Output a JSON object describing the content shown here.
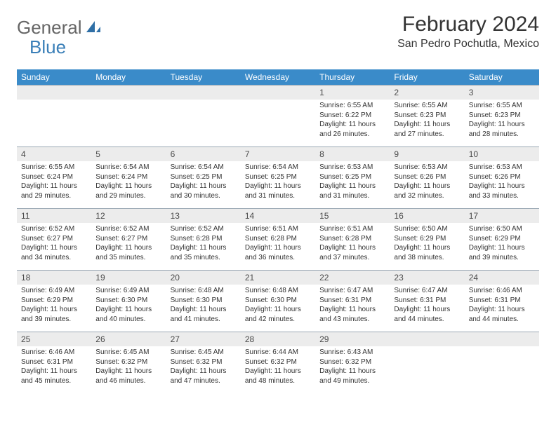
{
  "colors": {
    "header_bg": "#3a8bc9",
    "header_fg": "#ffffff",
    "daynum_bg": "#ececec",
    "border": "#9aa8b4",
    "text": "#333333",
    "logo_blue": "#3a7fb8"
  },
  "logo": {
    "left": "General",
    "right": "Blue"
  },
  "title": "February 2024",
  "location": "San Pedro Pochutla, Mexico",
  "day_headers": [
    "Sunday",
    "Monday",
    "Tuesday",
    "Wednesday",
    "Thursday",
    "Friday",
    "Saturday"
  ],
  "weeks": [
    [
      {
        "n": "",
        "lines": []
      },
      {
        "n": "",
        "lines": []
      },
      {
        "n": "",
        "lines": []
      },
      {
        "n": "",
        "lines": []
      },
      {
        "n": "1",
        "lines": [
          "Sunrise: 6:55 AM",
          "Sunset: 6:22 PM",
          "Daylight: 11 hours and 26 minutes."
        ]
      },
      {
        "n": "2",
        "lines": [
          "Sunrise: 6:55 AM",
          "Sunset: 6:23 PM",
          "Daylight: 11 hours and 27 minutes."
        ]
      },
      {
        "n": "3",
        "lines": [
          "Sunrise: 6:55 AM",
          "Sunset: 6:23 PM",
          "Daylight: 11 hours and 28 minutes."
        ]
      }
    ],
    [
      {
        "n": "4",
        "lines": [
          "Sunrise: 6:55 AM",
          "Sunset: 6:24 PM",
          "Daylight: 11 hours and 29 minutes."
        ]
      },
      {
        "n": "5",
        "lines": [
          "Sunrise: 6:54 AM",
          "Sunset: 6:24 PM",
          "Daylight: 11 hours and 29 minutes."
        ]
      },
      {
        "n": "6",
        "lines": [
          "Sunrise: 6:54 AM",
          "Sunset: 6:25 PM",
          "Daylight: 11 hours and 30 minutes."
        ]
      },
      {
        "n": "7",
        "lines": [
          "Sunrise: 6:54 AM",
          "Sunset: 6:25 PM",
          "Daylight: 11 hours and 31 minutes."
        ]
      },
      {
        "n": "8",
        "lines": [
          "Sunrise: 6:53 AM",
          "Sunset: 6:25 PM",
          "Daylight: 11 hours and 31 minutes."
        ]
      },
      {
        "n": "9",
        "lines": [
          "Sunrise: 6:53 AM",
          "Sunset: 6:26 PM",
          "Daylight: 11 hours and 32 minutes."
        ]
      },
      {
        "n": "10",
        "lines": [
          "Sunrise: 6:53 AM",
          "Sunset: 6:26 PM",
          "Daylight: 11 hours and 33 minutes."
        ]
      }
    ],
    [
      {
        "n": "11",
        "lines": [
          "Sunrise: 6:52 AM",
          "Sunset: 6:27 PM",
          "Daylight: 11 hours and 34 minutes."
        ]
      },
      {
        "n": "12",
        "lines": [
          "Sunrise: 6:52 AM",
          "Sunset: 6:27 PM",
          "Daylight: 11 hours and 35 minutes."
        ]
      },
      {
        "n": "13",
        "lines": [
          "Sunrise: 6:52 AM",
          "Sunset: 6:28 PM",
          "Daylight: 11 hours and 35 minutes."
        ]
      },
      {
        "n": "14",
        "lines": [
          "Sunrise: 6:51 AM",
          "Sunset: 6:28 PM",
          "Daylight: 11 hours and 36 minutes."
        ]
      },
      {
        "n": "15",
        "lines": [
          "Sunrise: 6:51 AM",
          "Sunset: 6:28 PM",
          "Daylight: 11 hours and 37 minutes."
        ]
      },
      {
        "n": "16",
        "lines": [
          "Sunrise: 6:50 AM",
          "Sunset: 6:29 PM",
          "Daylight: 11 hours and 38 minutes."
        ]
      },
      {
        "n": "17",
        "lines": [
          "Sunrise: 6:50 AM",
          "Sunset: 6:29 PM",
          "Daylight: 11 hours and 39 minutes."
        ]
      }
    ],
    [
      {
        "n": "18",
        "lines": [
          "Sunrise: 6:49 AM",
          "Sunset: 6:29 PM",
          "Daylight: 11 hours and 39 minutes."
        ]
      },
      {
        "n": "19",
        "lines": [
          "Sunrise: 6:49 AM",
          "Sunset: 6:30 PM",
          "Daylight: 11 hours and 40 minutes."
        ]
      },
      {
        "n": "20",
        "lines": [
          "Sunrise: 6:48 AM",
          "Sunset: 6:30 PM",
          "Daylight: 11 hours and 41 minutes."
        ]
      },
      {
        "n": "21",
        "lines": [
          "Sunrise: 6:48 AM",
          "Sunset: 6:30 PM",
          "Daylight: 11 hours and 42 minutes."
        ]
      },
      {
        "n": "22",
        "lines": [
          "Sunrise: 6:47 AM",
          "Sunset: 6:31 PM",
          "Daylight: 11 hours and 43 minutes."
        ]
      },
      {
        "n": "23",
        "lines": [
          "Sunrise: 6:47 AM",
          "Sunset: 6:31 PM",
          "Daylight: 11 hours and 44 minutes."
        ]
      },
      {
        "n": "24",
        "lines": [
          "Sunrise: 6:46 AM",
          "Sunset: 6:31 PM",
          "Daylight: 11 hours and 44 minutes."
        ]
      }
    ],
    [
      {
        "n": "25",
        "lines": [
          "Sunrise: 6:46 AM",
          "Sunset: 6:31 PM",
          "Daylight: 11 hours and 45 minutes."
        ]
      },
      {
        "n": "26",
        "lines": [
          "Sunrise: 6:45 AM",
          "Sunset: 6:32 PM",
          "Daylight: 11 hours and 46 minutes."
        ]
      },
      {
        "n": "27",
        "lines": [
          "Sunrise: 6:45 AM",
          "Sunset: 6:32 PM",
          "Daylight: 11 hours and 47 minutes."
        ]
      },
      {
        "n": "28",
        "lines": [
          "Sunrise: 6:44 AM",
          "Sunset: 6:32 PM",
          "Daylight: 11 hours and 48 minutes."
        ]
      },
      {
        "n": "29",
        "lines": [
          "Sunrise: 6:43 AM",
          "Sunset: 6:32 PM",
          "Daylight: 11 hours and 49 minutes."
        ]
      },
      {
        "n": "",
        "lines": []
      },
      {
        "n": "",
        "lines": []
      }
    ]
  ]
}
